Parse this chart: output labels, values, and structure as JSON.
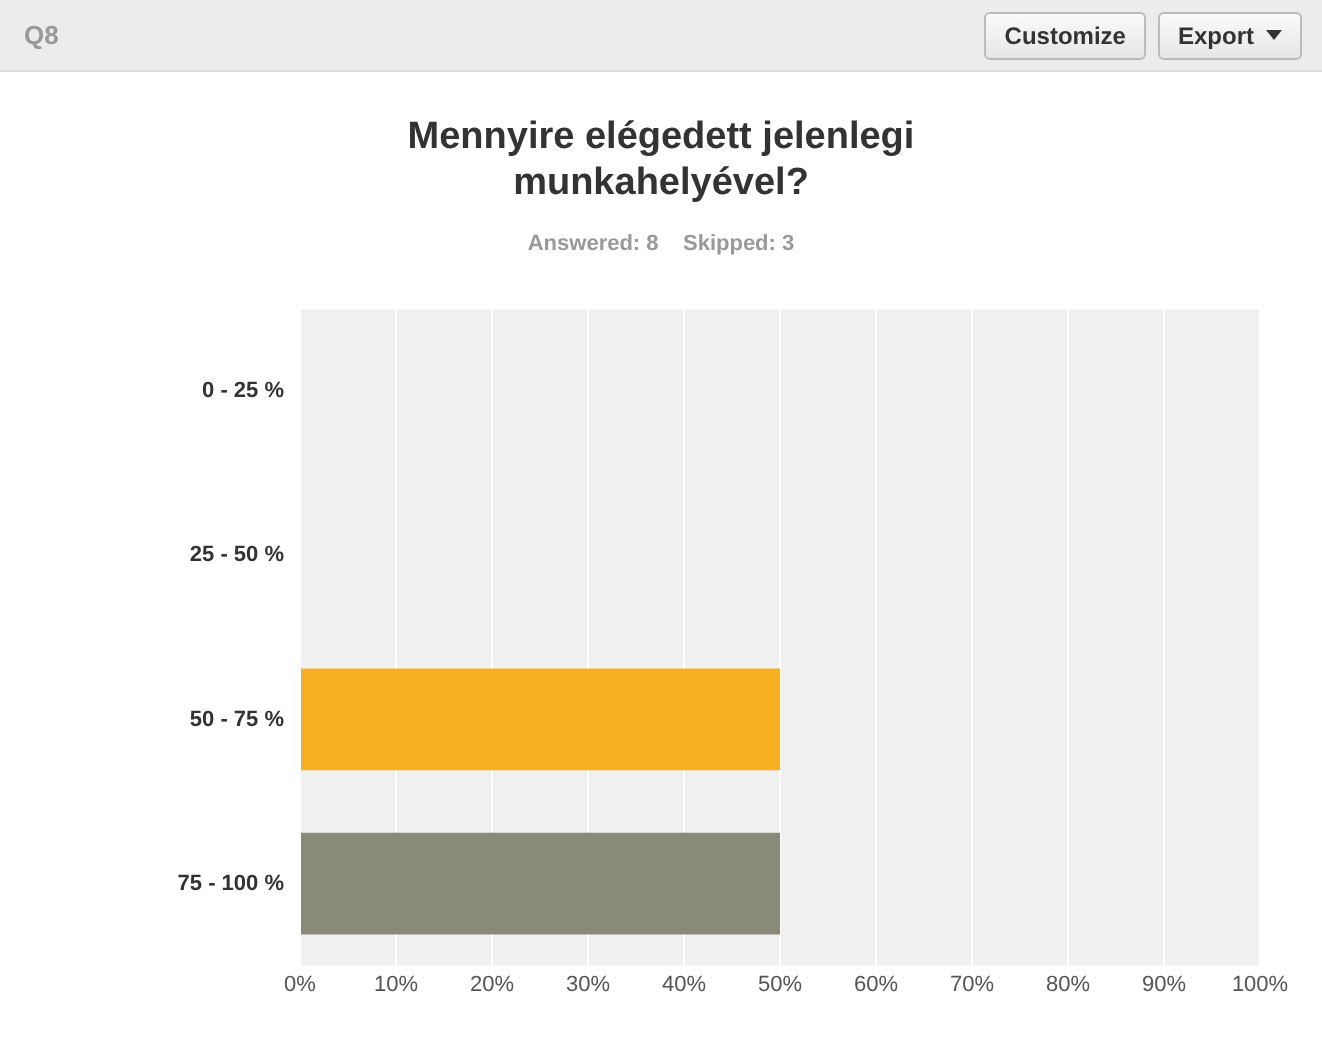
{
  "chart_data": {
    "type": "bar",
    "orientation": "horizontal",
    "title": "Mennyire elégedett jelenlegi munkahelyével?",
    "subtitle": "Answered: 8    Skipped: 3",
    "annotations": [
      "Q8",
      "Customize",
      "Export"
    ],
    "categories": [
      "0 - 25 %",
      "25 - 50 %",
      "50 - 75 %",
      "75 - 100 %"
    ],
    "values": [
      0,
      0,
      50,
      50
    ],
    "colors": [
      "#84bc3c",
      "#33a0c4",
      "#f7b022",
      "#8a8a7a"
    ],
    "xlim": [
      0,
      100
    ],
    "xticks": [
      {
        "value": 0,
        "label": "0%"
      },
      {
        "value": 10,
        "label": "10%"
      },
      {
        "value": 20,
        "label": "20%"
      },
      {
        "value": 30,
        "label": "30%"
      },
      {
        "value": 40,
        "label": "40%"
      },
      {
        "value": 50,
        "label": "50%"
      },
      {
        "value": 60,
        "label": "60%"
      },
      {
        "value": 70,
        "label": "70%"
      },
      {
        "value": 80,
        "label": "80%"
      },
      {
        "value": 90,
        "label": "90%"
      },
      {
        "value": 100,
        "label": "100%"
      }
    ],
    "grid": "x",
    "legend": false
  }
}
